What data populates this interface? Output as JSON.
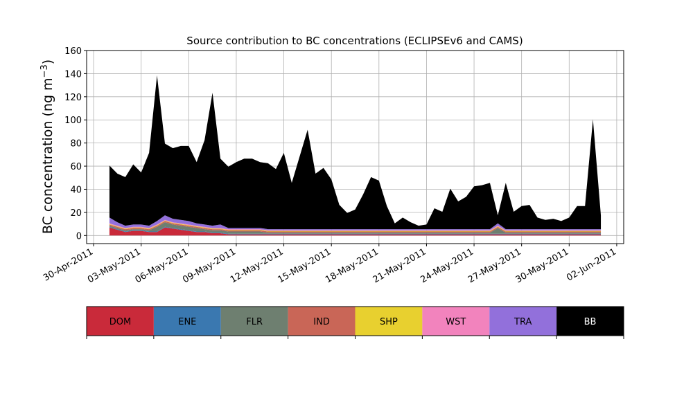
{
  "chart_data": {
    "type": "area",
    "stacked": true,
    "title": "Source contribution to BC concentrations (ECLIPSEv6 and CAMS)",
    "xlabel": "",
    "ylabel": "BC concentration (ng m",
    "ylabel_sup": "−3",
    "ylabel_close": ")",
    "ylim": [
      -7,
      160
    ],
    "xlim": [
      "2011-04-30",
      "2011-06-02"
    ],
    "grid": true,
    "yticks": [
      0,
      20,
      40,
      60,
      80,
      100,
      120,
      140,
      160
    ],
    "xticks": [
      "30-Apr-2011",
      "03-May-2011",
      "06-May-2011",
      "09-May-2011",
      "12-May-2011",
      "15-May-2011",
      "18-May-2011",
      "21-May-2011",
      "24-May-2011",
      "27-May-2011",
      "30-May-2011",
      "02-Jun-2011"
    ],
    "legend": {
      "position": "bottom",
      "entries": [
        {
          "name": "DOM",
          "color": "#c92a3a"
        },
        {
          "name": "ENE",
          "color": "#3a78b0"
        },
        {
          "name": "FLR",
          "color": "#6e7f70"
        },
        {
          "name": "IND",
          "color": "#c96657"
        },
        {
          "name": "SHP",
          "color": "#e8d02f"
        },
        {
          "name": "WST",
          "color": "#f283bd"
        },
        {
          "name": "TRA",
          "color": "#9270db"
        },
        {
          "name": "BB",
          "color": "#000000"
        }
      ]
    },
    "x": [
      "2011-05-01",
      "2011-05-01 12:00",
      "2011-05-02",
      "2011-05-02 12:00",
      "2011-05-03",
      "2011-05-03 12:00",
      "2011-05-04",
      "2011-05-04 12:00",
      "2011-05-05",
      "2011-05-05 12:00",
      "2011-05-06",
      "2011-05-06 12:00",
      "2011-05-07",
      "2011-05-07 12:00",
      "2011-05-08",
      "2011-05-08 12:00",
      "2011-05-09",
      "2011-05-09 12:00",
      "2011-05-10",
      "2011-05-10 12:00",
      "2011-05-11",
      "2011-05-11 12:00",
      "2011-05-12",
      "2011-05-12 12:00",
      "2011-05-13",
      "2011-05-13 12:00",
      "2011-05-14",
      "2011-05-14 12:00",
      "2011-05-15",
      "2011-05-15 12:00",
      "2011-05-16",
      "2011-05-16 12:00",
      "2011-05-17",
      "2011-05-17 12:00",
      "2011-05-18",
      "2011-05-18 12:00",
      "2011-05-19",
      "2011-05-19 12:00",
      "2011-05-20",
      "2011-05-20 12:00",
      "2011-05-21",
      "2011-05-21 12:00",
      "2011-05-22",
      "2011-05-22 12:00",
      "2011-05-23",
      "2011-05-23 12:00",
      "2011-05-24",
      "2011-05-24 12:00",
      "2011-05-25",
      "2011-05-25 12:00",
      "2011-05-26",
      "2011-05-26 12:00",
      "2011-05-27",
      "2011-05-27 12:00",
      "2011-05-28",
      "2011-05-28 12:00",
      "2011-05-29",
      "2011-05-29 12:00",
      "2011-05-30",
      "2011-05-30 12:00",
      "2011-05-31",
      "2011-05-31 12:00",
      "2011-06-01"
    ],
    "series": [
      {
        "name": "DOM",
        "values": [
          7,
          5,
          3,
          4,
          4,
          3,
          3,
          7,
          6,
          5,
          4,
          3,
          3,
          2,
          2,
          1,
          1,
          1,
          1,
          1,
          1,
          1,
          1,
          1,
          1,
          1,
          1,
          1,
          1,
          1,
          1,
          1,
          1,
          1,
          1,
          1,
          1,
          1,
          1,
          1,
          1,
          1,
          1,
          1,
          1,
          1,
          1,
          1,
          1,
          1,
          1,
          1,
          1,
          1,
          1,
          1,
          1,
          1,
          1,
          1,
          1,
          1,
          1
        ]
      },
      {
        "name": "ENE",
        "values": [
          0.5,
          0.5,
          0.5,
          0.5,
          0.5,
          0.5,
          0.5,
          0.5,
          0.5,
          0.5,
          0.5,
          0.5,
          0.5,
          0.5,
          0.5,
          0.5,
          0.5,
          0.5,
          0.5,
          0.5,
          0.5,
          0.5,
          0.5,
          0.5,
          0.5,
          0.5,
          0.5,
          0.5,
          0.5,
          0.5,
          0.5,
          0.5,
          0.5,
          0.5,
          0.5,
          0.5,
          0.5,
          0.5,
          0.5,
          0.5,
          0.5,
          0.5,
          0.5,
          0.5,
          0.5,
          0.5,
          0.5,
          0.5,
          0.5,
          0.5,
          0.5,
          0.5,
          0.5,
          0.5,
          0.5,
          0.5,
          0.5,
          0.5,
          0.5,
          0.5,
          0.5,
          0.5,
          0.5
        ]
      },
      {
        "name": "FLR",
        "values": [
          1,
          1,
          1,
          1,
          1,
          1,
          4,
          4,
          3,
          3,
          3,
          3,
          2,
          2,
          2,
          2,
          2,
          2,
          2,
          2,
          1,
          1,
          1,
          1,
          1,
          1,
          1,
          1,
          1,
          1,
          1,
          1,
          1,
          1,
          1,
          1,
          1,
          1,
          1,
          1,
          1,
          1,
          1,
          1,
          1,
          1,
          1,
          1,
          1,
          5,
          1,
          1,
          1,
          1,
          1,
          1,
          1,
          1,
          1,
          1,
          1,
          1,
          1
        ]
      },
      {
        "name": "IND",
        "values": [
          1,
          1,
          1,
          1,
          1,
          1,
          1,
          1,
          1,
          1,
          1,
          1,
          1,
          1,
          1,
          1,
          1,
          1,
          1,
          1,
          1,
          1,
          1,
          1,
          1,
          1,
          1,
          1,
          1,
          1,
          1,
          1,
          1,
          1,
          1,
          1,
          1,
          1,
          1,
          1,
          1,
          1,
          1,
          1,
          1,
          1,
          1,
          1,
          1,
          1,
          1,
          1,
          1,
          1,
          1,
          1,
          1,
          1,
          1,
          1,
          1,
          1,
          1
        ]
      },
      {
        "name": "SHP",
        "values": [
          0.5,
          0.5,
          0.5,
          0.5,
          0.5,
          0.5,
          0.5,
          0.5,
          0.5,
          0.5,
          0.5,
          0.5,
          0.5,
          0.5,
          0.5,
          0.5,
          0.5,
          0.5,
          0.5,
          0.5,
          0.5,
          0.5,
          0.5,
          0.5,
          0.5,
          0.5,
          0.5,
          0.5,
          0.5,
          0.5,
          0.5,
          0.5,
          0.5,
          0.5,
          0.5,
          0.5,
          0.5,
          0.5,
          0.5,
          0.5,
          0.5,
          0.5,
          0.5,
          0.5,
          0.5,
          0.5,
          0.5,
          0.5,
          0.5,
          0.5,
          0.5,
          0.5,
          0.5,
          0.5,
          0.5,
          0.5,
          0.5,
          0.5,
          0.5,
          0.5,
          0.5,
          0.5,
          0.5
        ]
      },
      {
        "name": "WST",
        "values": [
          0.5,
          0.5,
          0.5,
          0.5,
          0.5,
          0.5,
          0.5,
          0.5,
          0.5,
          0.5,
          0.5,
          0.5,
          0.5,
          0.5,
          0.5,
          0.5,
          0.5,
          0.5,
          0.5,
          0.5,
          0.5,
          0.5,
          0.5,
          0.5,
          0.5,
          0.5,
          0.5,
          0.5,
          0.5,
          0.5,
          0.5,
          0.5,
          0.5,
          0.5,
          0.5,
          0.5,
          0.5,
          0.5,
          0.5,
          0.5,
          0.5,
          0.5,
          0.5,
          0.5,
          0.5,
          0.5,
          0.5,
          0.5,
          0.5,
          0.5,
          0.5,
          0.5,
          0.5,
          0.5,
          0.5,
          0.5,
          0.5,
          0.5,
          0.5,
          0.5,
          0.5,
          0.5,
          0.5
        ]
      },
      {
        "name": "TRA",
        "values": [
          5,
          3,
          2,
          2,
          2,
          2,
          3,
          4,
          3,
          3,
          3,
          2,
          2,
          2,
          3,
          1,
          1,
          1,
          1,
          1,
          1,
          1,
          1,
          1,
          1,
          1,
          1,
          1,
          1,
          1,
          1,
          1,
          1,
          1,
          1,
          1,
          1,
          1,
          1,
          1,
          1,
          1,
          1,
          1,
          1,
          1,
          1,
          1,
          1,
          2,
          1,
          1,
          1,
          1,
          1,
          1,
          1,
          1,
          1,
          1,
          1,
          1,
          1
        ]
      },
      {
        "name": "BB",
        "values": [
          45,
          42,
          42,
          52,
          45,
          63,
          126,
          62,
          61,
          64,
          65,
          53,
          73,
          115,
          57,
          53,
          57,
          60,
          60,
          57,
          57,
          52,
          66,
          40,
          63,
          86,
          48,
          53,
          43,
          21,
          14,
          17,
          30,
          45,
          42,
          20,
          5,
          10,
          6,
          3,
          4,
          18,
          15,
          35,
          24,
          28,
          37,
          38,
          40,
          7,
          40,
          15,
          20,
          21,
          10,
          8,
          9,
          7,
          10,
          20,
          20,
          95,
          12
        ]
      }
    ]
  }
}
